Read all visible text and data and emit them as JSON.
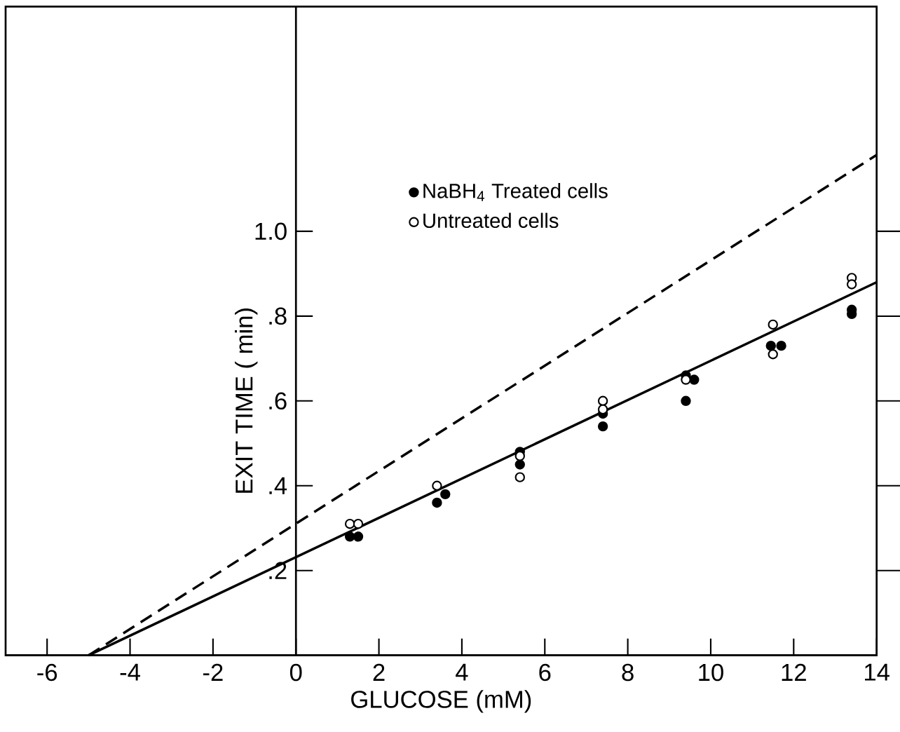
{
  "chart_data": {
    "type": "scatter",
    "xlabel": "GLUCOSE  (mM)",
    "ylabel": "EXIT TIME  ( min)",
    "xlim": [
      -7,
      14
    ],
    "ylim": [
      0,
      1.53
    ],
    "xticks": [
      -6,
      -4,
      -2,
      0,
      2,
      4,
      6,
      8,
      10,
      12,
      14
    ],
    "yticks": [
      {
        "value": 0.2,
        "label": ".2"
      },
      {
        "value": 0.4,
        "label": ".4"
      },
      {
        "value": 0.6,
        "label": ".6"
      },
      {
        "value": 0.8,
        "label": ".8"
      },
      {
        "value": 1.0,
        "label": "1.0"
      }
    ],
    "legend": "top",
    "grid": false,
    "series": [
      {
        "name": "NaBH$_{4}$  Treated cells",
        "color": "#000000",
        "marker": "circle",
        "x": [
          1.3,
          1.5,
          3.4,
          3.6,
          5.4,
          5.4,
          7.4,
          7.4,
          9.4,
          9.6,
          9.4,
          11.45,
          11.7,
          13.4,
          13.4
        ],
        "values": [
          0.28,
          0.28,
          0.36,
          0.38,
          0.48,
          0.45,
          0.57,
          0.54,
          0.66,
          0.65,
          0.6,
          0.73,
          0.73,
          0.815,
          0.805
        ]
      },
      {
        "name": "Untreated cells",
        "color": "#ffffff",
        "marker": "circle",
        "x": [
          1.3,
          1.5,
          3.4,
          5.4,
          5.4,
          7.4,
          7.4,
          9.4,
          11.5,
          11.5,
          13.4,
          13.4
        ],
        "values": [
          0.31,
          0.31,
          0.4,
          0.42,
          0.47,
          0.6,
          0.58,
          0.65,
          0.78,
          0.71,
          0.89,
          0.875
        ]
      },
      {
        "type": "line",
        "color": "#000000",
        "line_style": "solid",
        "marker": "none",
        "x": [
          -5,
          14
        ],
        "values": [
          0,
          0.88
        ]
      },
      {
        "type": "line",
        "color": "#000000",
        "line_style": "dashed",
        "marker": "none",
        "x": [
          -5,
          14
        ],
        "values": [
          0,
          1.18
        ]
      }
    ]
  }
}
